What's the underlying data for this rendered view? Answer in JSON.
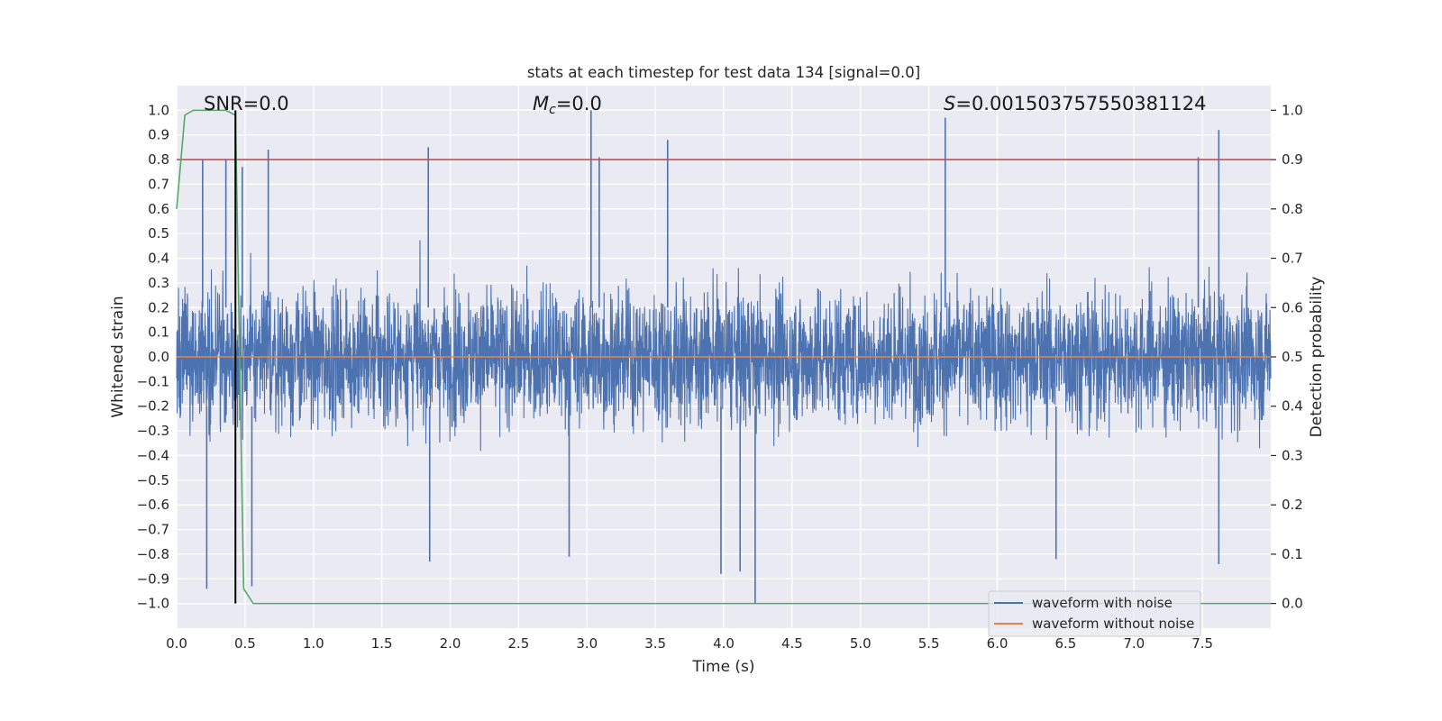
{
  "chart_data": {
    "type": "line",
    "title": "stats at each timestep for test data 134 [signal=0.0]",
    "xlabel": "Time (s)",
    "ylabel": "Whitened strain",
    "ylabel_right": "Detection probability",
    "xlim": [
      0.0,
      8.0
    ],
    "ylim": [
      -1.1,
      1.1
    ],
    "ylim_right": [
      -0.05,
      1.05
    ],
    "x_ticks": [
      0.0,
      0.5,
      1.0,
      1.5,
      2.0,
      2.5,
      3.0,
      3.5,
      4.0,
      4.5,
      5.0,
      5.5,
      6.0,
      6.5,
      7.0,
      7.5
    ],
    "x_tick_labels": [
      "0.0",
      "0.5",
      "1.0",
      "1.5",
      "2.0",
      "2.5",
      "3.0",
      "3.5",
      "4.0",
      "4.5",
      "5.0",
      "5.5",
      "6.0",
      "6.5",
      "7.0",
      "7.5"
    ],
    "y_ticks": [
      1.0,
      0.9,
      0.8,
      0.7,
      0.6,
      0.5,
      0.4,
      0.3,
      0.2,
      0.1,
      0.0,
      -0.1,
      -0.2,
      -0.3,
      -0.4,
      -0.5,
      -0.6,
      -0.7,
      -0.8,
      -0.9,
      -1.0
    ],
    "y_tick_labels": [
      "1.0",
      "0.9",
      "0.8",
      "0.7",
      "0.6",
      "0.5",
      "0.4",
      "0.3",
      "0.2",
      "0.1",
      "0.0",
      "−0.1",
      "−0.2",
      "−0.3",
      "−0.4",
      "−0.5",
      "−0.6",
      "−0.7",
      "−0.8",
      "−0.9",
      "−1.0"
    ],
    "y_right_ticks": [
      1.0,
      0.9,
      0.8,
      0.7,
      0.6,
      0.5,
      0.4,
      0.3,
      0.2,
      0.1,
      0.0
    ],
    "y_right_tick_labels": [
      "1.0",
      "0.9",
      "0.8",
      "0.7",
      "0.6",
      "0.5",
      "0.4",
      "0.3",
      "0.2",
      "0.1",
      "0.0"
    ],
    "grid": true,
    "legend_position": "bottom-right",
    "annotations": {
      "snr": "SNR=0.0",
      "mc": "=0.0",
      "mc_symbol": "M",
      "mc_subscript": "c",
      "s": "=0.001503757550381124",
      "s_symbol": "S"
    },
    "series": [
      {
        "name": "waveform with noise",
        "color": "#4c72b0",
        "axis": "left",
        "description_values": "dense noise, amplitude mostly within ±0.5 with spikes",
        "peaks": [
          {
            "x": 0.19,
            "y": 0.8
          },
          {
            "x": 0.36,
            "y": 0.8
          },
          {
            "x": 0.48,
            "y": 0.77
          },
          {
            "x": 0.67,
            "y": 0.84
          },
          {
            "x": 1.84,
            "y": 0.85
          },
          {
            "x": 3.03,
            "y": 1.0
          },
          {
            "x": 3.09,
            "y": 0.81
          },
          {
            "x": 3.59,
            "y": 0.88
          },
          {
            "x": 5.62,
            "y": 0.97
          },
          {
            "x": 7.47,
            "y": 0.81
          },
          {
            "x": 7.62,
            "y": 0.92
          }
        ],
        "troughs": [
          {
            "x": 0.22,
            "y": -0.94
          },
          {
            "x": 0.55,
            "y": -0.93
          },
          {
            "x": 1.85,
            "y": -0.83
          },
          {
            "x": 2.87,
            "y": -0.81
          },
          {
            "x": 3.98,
            "y": -0.88
          },
          {
            "x": 4.12,
            "y": -0.87
          },
          {
            "x": 4.23,
            "y": -1.0
          },
          {
            "x": 6.43,
            "y": -0.82
          },
          {
            "x": 7.62,
            "y": -0.84
          }
        ]
      },
      {
        "name": "waveform without noise",
        "color": "#dd8452",
        "axis": "left",
        "x": [
          0.0,
          8.0
        ],
        "y": [
          0.0,
          0.0
        ]
      },
      {
        "color": "#55a868",
        "axis": "right",
        "x": [
          0.0,
          0.06,
          0.12,
          0.18,
          0.24,
          0.3,
          0.36,
          0.43,
          0.49,
          0.56,
          8.0
        ],
        "y": [
          0.8,
          0.99,
          1.0,
          1.0,
          1.0,
          1.0,
          1.0,
          0.99,
          0.03,
          0.0,
          0.0
        ]
      }
    ],
    "threshold_line": {
      "color": "#c44e52",
      "axis": "right",
      "y": 0.9
    },
    "vertical_line": {
      "color": "#000000",
      "x": 0.43,
      "y_range": [
        -1.0,
        1.0
      ]
    }
  }
}
